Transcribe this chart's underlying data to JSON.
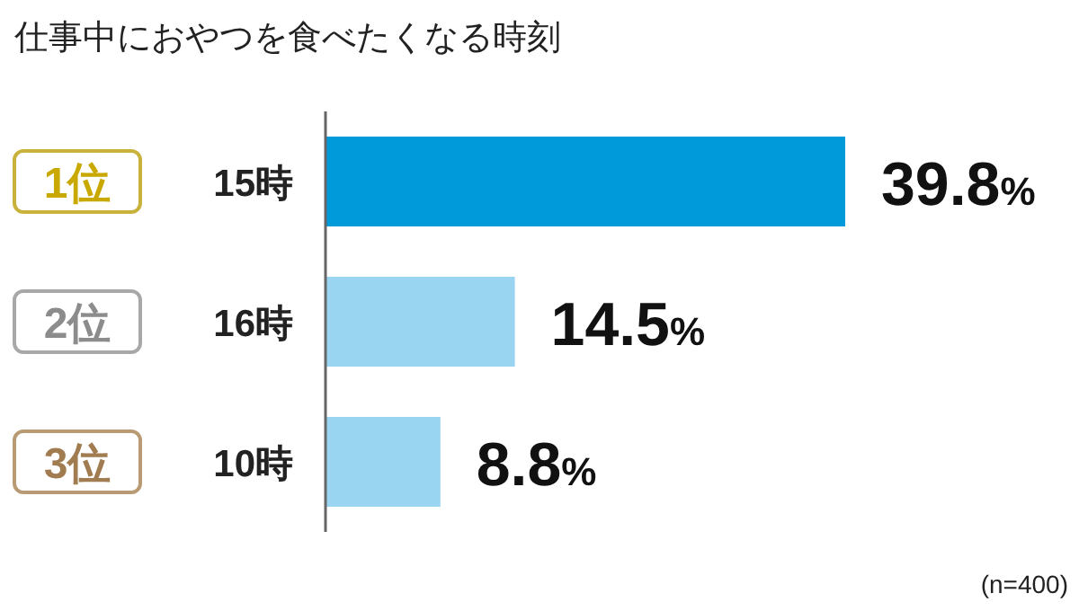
{
  "chart_data": {
    "type": "bar",
    "orientation": "horizontal",
    "title": "仕事中におやつを食べたくなる時刻",
    "categories": [
      "15時",
      "16時",
      "10時"
    ],
    "values": [
      39.8,
      14.5,
      8.8
    ],
    "colors": [
      "#0099d9",
      "#99d4f0",
      "#99d4f0"
    ],
    "value_labels": [
      "39.8%",
      "14.5%",
      "8.8%"
    ],
    "annotations": [
      "1位",
      "2位",
      "3位",
      "(n=400)"
    ]
  }
}
